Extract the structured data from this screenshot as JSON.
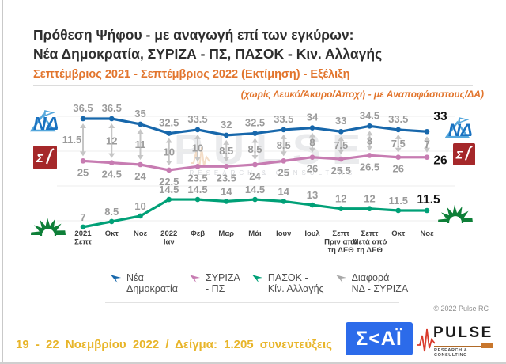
{
  "header": {
    "title_line1": "Πρόθεση Ψήφου - με αναγωγή επί των εγκύρων:",
    "title_line2": "Νέα Δημοκρατία, ΣΥΡΙΖΑ - ΠΣ, ΠΑΣΟΚ - Κιν. Αλλαγής",
    "subtitle": "Σεπτέμβριος 2021 - Σεπτέμβριος 2022   (Εκτίμηση) - Εξέλιξη",
    "note": "(χωρίς Λευκό/Άκυρο/Αποχή - με Αναποφάσιστους/ΔΑ)"
  },
  "chart_data": {
    "type": "line",
    "title": "Πρόθεση Ψήφου - με αναγωγή επί των εγκύρων",
    "categories": [
      "2021\nΣεπτ",
      "Οκτ",
      "Νοε",
      "2022\nΙαν",
      "Φεβ",
      "Μαρ",
      "Μάι",
      "Ιουν",
      "Ιουλ",
      "Σεπτ\nΠριν από\nτη ΔΕΘ",
      "Σεπτ\nΜετά από\nτη ΔΕΘ",
      "Οκτ",
      "Νοε"
    ],
    "series": [
      {
        "name": "Νέα Δημοκρατία",
        "color": "#1767ab",
        "values": [
          36.5,
          36.5,
          35,
          32.5,
          33.5,
          32,
          32.5,
          33.5,
          34,
          33,
          34.5,
          33.5,
          33
        ]
      },
      {
        "name": "ΣΥΡΙΖΑ - ΠΣ",
        "color": "#c77cb2",
        "values": [
          25,
          24.5,
          24,
          22.5,
          23.5,
          23.5,
          24,
          25,
          26,
          25.5,
          26.5,
          26,
          26
        ]
      },
      {
        "name": "ΠΑΣΟΚ - Κίν. Αλλαγής",
        "color": "#00a077",
        "values": [
          7,
          8.5,
          10,
          14.5,
          14.5,
          14,
          14.5,
          14,
          13,
          12,
          12,
          11.5,
          11.5
        ]
      },
      {
        "name": "Διαφορά ΝΔ - ΣΥΡΙΖΑ",
        "color": "#c6c6c6",
        "values": [
          11.5,
          12,
          11,
          10,
          10,
          8.5,
          8.5,
          8.5,
          8,
          7.5,
          8,
          7.5,
          7
        ],
        "role": "difference-arrows"
      }
    ],
    "label_color": "#9b9b9b",
    "final_label_color": "#141414",
    "ylim": [
      5,
      38
    ],
    "grid": "faint-horizontal",
    "legend_position": "bottom"
  },
  "legend": {
    "items": [
      {
        "line1": "Νέα",
        "line2": "Δημοκρατία",
        "color": "#1767ab"
      },
      {
        "line1": "ΣΥΡΙΖΑ",
        "line2": "- ΠΣ",
        "color": "#c77cb2"
      },
      {
        "line1": "ΠΑΣΟΚ -",
        "line2": "Κίν. Αλλαγής",
        "color": "#00a077"
      },
      {
        "line1": "Διαφορά",
        "line2": "ΝΔ - ΣΥΡΙΖΑ",
        "color": "#a8a8a8"
      }
    ]
  },
  "party_icons": {
    "nd_text": "ΝΔ",
    "syriza_text": "Σ",
    "pasok_icon": "rising-sun"
  },
  "watermark": {
    "text": "PULSE",
    "subtext": "RESEARCH & CONSULTING"
  },
  "footer": {
    "copyright": "© 2022 Pulse RC",
    "fieldwork": "19 - 22 Νοεμβρίου 2022 / Δείγμα: 1.205 συνεντεύξεις",
    "skai_logo_text": "Σ<ΑΪ",
    "pulse_logo_text": "PULSE",
    "pulse_logo_subtext": "RESEARCH & CONSULTING"
  }
}
